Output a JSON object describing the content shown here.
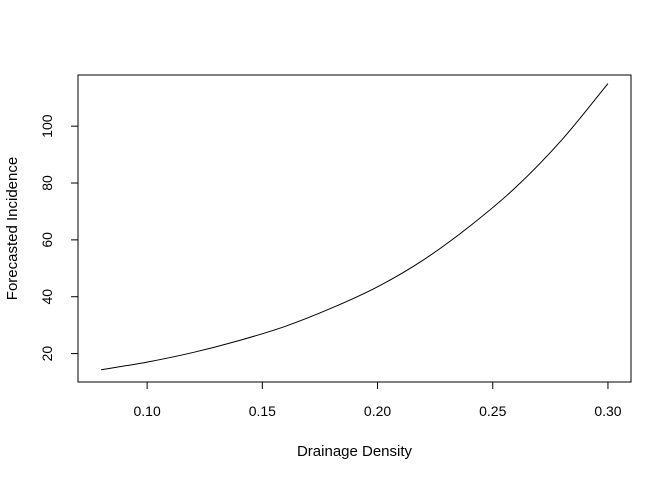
{
  "chart_data": {
    "type": "line",
    "title": "",
    "xlabel": "Drainage Density",
    "ylabel": "Forecasted Incidence",
    "xlim": [
      0.07,
      0.31
    ],
    "ylim": [
      10,
      118
    ],
    "grid": false,
    "x_ticks": [
      0.1,
      0.15,
      0.2,
      0.25,
      0.3
    ],
    "x_tick_labels": [
      "0.10",
      "0.15",
      "0.20",
      "0.25",
      "0.30"
    ],
    "y_ticks": [
      20,
      40,
      60,
      80,
      100
    ],
    "y_tick_labels": [
      "20",
      "40",
      "60",
      "80",
      "100"
    ],
    "series": [
      {
        "x": [
          0.08,
          0.1,
          0.12,
          0.14,
          0.16,
          0.18,
          0.2,
          0.22,
          0.24,
          0.26,
          0.28,
          0.3
        ],
        "y": [
          14.3,
          17.0,
          20.4,
          24.6,
          29.6,
          36.0,
          43.5,
          53.0,
          64.8,
          78.5,
          95.2,
          115.0
        ],
        "color": "#000000"
      }
    ]
  }
}
